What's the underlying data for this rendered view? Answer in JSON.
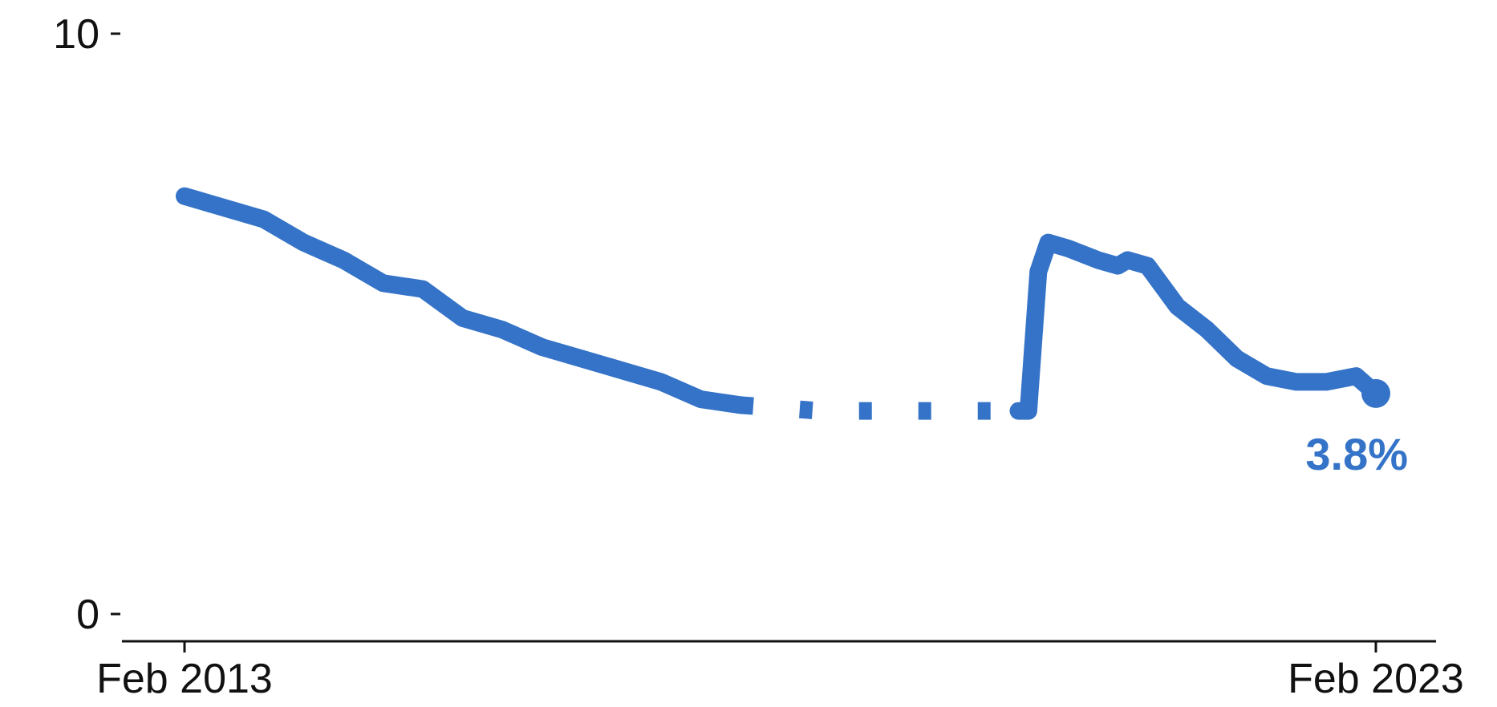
{
  "chart_data": {
    "type": "line",
    "title": "",
    "xlabel": "",
    "ylabel": "",
    "ylim": [
      0,
      10
    ],
    "y_ticks": [
      "0",
      "10"
    ],
    "x_tick_labels": [
      "Feb 2013",
      "Feb 2023"
    ],
    "grid": false,
    "colors": {
      "series": "#3473c7",
      "axis": "#111111"
    },
    "series": [
      {
        "style": "solid",
        "points": [
          [
            "2013-02",
            7.2
          ],
          [
            "2013-06",
            7.0
          ],
          [
            "2013-10",
            6.8
          ],
          [
            "2014-02",
            6.4
          ],
          [
            "2014-06",
            6.1
          ],
          [
            "2014-10",
            5.7
          ],
          [
            "2015-02",
            5.6
          ],
          [
            "2015-06",
            5.1
          ],
          [
            "2015-10",
            4.9
          ],
          [
            "2016-02",
            4.6
          ],
          [
            "2016-06",
            4.4
          ],
          [
            "2016-10",
            4.2
          ],
          [
            "2017-02",
            4.0
          ],
          [
            "2017-06",
            3.7
          ],
          [
            "2017-10",
            3.6
          ]
        ]
      },
      {
        "style": "dotted",
        "points": [
          [
            "2017-10",
            3.6
          ],
          [
            "2018-06",
            3.5
          ],
          [
            "2019-01",
            3.5
          ],
          [
            "2019-08",
            3.5
          ],
          [
            "2020-02",
            3.5
          ]
        ]
      },
      {
        "style": "solid",
        "points": [
          [
            "2020-02",
            3.5
          ],
          [
            "2020-03",
            3.5
          ],
          [
            "2020-04",
            5.9
          ],
          [
            "2020-05",
            6.4
          ],
          [
            "2020-07",
            6.3
          ],
          [
            "2020-10",
            6.1
          ],
          [
            "2020-12",
            6.0
          ],
          [
            "2021-01",
            6.1
          ],
          [
            "2021-03",
            6.0
          ],
          [
            "2021-06",
            5.3
          ],
          [
            "2021-09",
            4.9
          ],
          [
            "2021-12",
            4.4
          ],
          [
            "2022-03",
            4.1
          ],
          [
            "2022-06",
            4.0
          ],
          [
            "2022-09",
            4.0
          ],
          [
            "2022-12",
            4.1
          ],
          [
            "2023-02",
            3.8
          ]
        ]
      }
    ],
    "end_label": "3.8%"
  }
}
